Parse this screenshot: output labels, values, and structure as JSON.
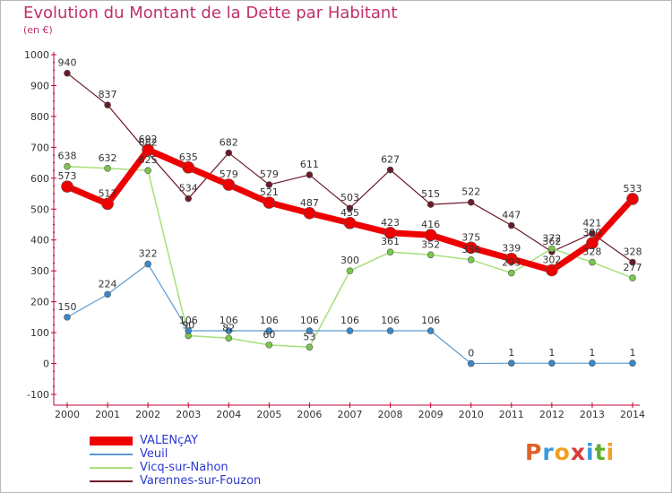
{
  "title": "Evolution du Montant de la Dette par Habitant",
  "unit": "(en €)",
  "logo": {
    "text": "Proxiti",
    "colors": [
      "#e0602a",
      "#3a9ad8",
      "#f0a020",
      "#d83a3a",
      "#3a9ad8",
      "#5ab02a",
      "#f0a020"
    ]
  },
  "chart_data": {
    "type": "line",
    "title": "Evolution du Montant de la Dette par Habitant",
    "ylabel": "(en €)",
    "xlabel": "",
    "x": [
      "2000",
      "2001",
      "2002",
      "2003",
      "2004",
      "2005",
      "2006",
      "2007",
      "2008",
      "2009",
      "2010",
      "2011",
      "2012",
      "2013",
      "2014"
    ],
    "ylim": [
      -100,
      1000
    ],
    "yticks": [
      -100,
      0,
      100,
      200,
      300,
      400,
      500,
      600,
      700,
      800,
      900,
      1000
    ],
    "grid": false,
    "legend_position": "bottom-left",
    "series": [
      {
        "name": "Varennes-sur-Fouzon",
        "color": "#6b1a28",
        "width": 1.2,
        "marker": "#6b1a28",
        "markerSize": 3.5,
        "values": [
          940,
          837,
          682,
          534,
          682,
          579,
          611,
          503,
          627,
          515,
          522,
          447,
          362,
          421,
          328
        ],
        "labels": [
          "940",
          "837",
          "682",
          "534",
          "682",
          "579",
          "611",
          "503",
          "627",
          "515",
          "522",
          "447",
          "362",
          "421",
          "328"
        ]
      },
      {
        "name": "Vicq-sur-Nahon",
        "color": "#a6e07a",
        "width": 1.5,
        "marker": "#7ac84a",
        "markerSize": 3.5,
        "values": [
          638,
          632,
          625,
          90,
          82,
          60,
          53,
          300,
          361,
          352,
          336,
          293,
          372,
          328,
          277
        ],
        "labels": [
          "638",
          "632",
          "625",
          "90",
          "82",
          "60",
          "53",
          "300",
          "361",
          "352",
          "336",
          "293",
          "372",
          "328",
          "277"
        ]
      },
      {
        "name": "Veuil",
        "color": "#5a9ad0",
        "width": 1.2,
        "marker": "#3a88c8",
        "markerSize": 3.5,
        "values": [
          150,
          224,
          322,
          106,
          106,
          106,
          106,
          106,
          106,
          106,
          0,
          1,
          1,
          1,
          1
        ],
        "labels": [
          "150",
          "224",
          "322",
          "106",
          "106",
          "106",
          "106",
          "106",
          "106",
          "106",
          "0",
          "1",
          "1",
          "1",
          "1"
        ]
      },
      {
        "name": "VALENçAY",
        "color": "#ee0000",
        "width": 7,
        "marker": "#ee0000",
        "markerSize": 6.5,
        "values": [
          573,
          517,
          692,
          635,
          579,
          521,
          487,
          455,
          423,
          416,
          375,
          339,
          302,
          390,
          533
        ],
        "labels": [
          "573",
          "517",
          "692",
          "635",
          "579",
          "521",
          "487",
          "455",
          "423",
          "416",
          "375",
          "339",
          "302",
          "390",
          "533"
        ]
      }
    ],
    "legend": [
      {
        "name": "VALENçAY",
        "color": "#ee0000",
        "width": 10
      },
      {
        "name": "Veuil",
        "color": "#5a9ad0",
        "width": 2
      },
      {
        "name": "Vicq-sur-Nahon",
        "color": "#a6e07a",
        "width": 2
      },
      {
        "name": "Varennes-sur-Fouzon",
        "color": "#6b1a28",
        "width": 2
      }
    ]
  }
}
